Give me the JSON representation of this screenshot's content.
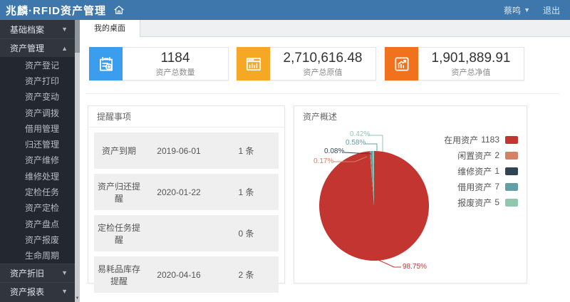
{
  "header": {
    "logo": "兆麟·RFID资产管理",
    "user": "蔡鸣",
    "logout": "退出"
  },
  "sidebar": {
    "groups": [
      {
        "label": "基础档案",
        "expanded": false
      },
      {
        "label": "资产管理",
        "expanded": true,
        "children": [
          "资产登记",
          "资产打印",
          "资产变动",
          "资产调拨",
          "借用管理",
          "归还管理",
          "资产维修",
          "维修处理",
          "定检任务",
          "资产定检",
          "资产盘点",
          "资产报废",
          "生命周期"
        ]
      },
      {
        "label": "资产折旧",
        "expanded": false
      },
      {
        "label": "资产报表",
        "expanded": false
      }
    ]
  },
  "tabs": {
    "items": [
      {
        "label": "我的桌面",
        "active": true
      }
    ]
  },
  "stats": [
    {
      "value": "1184",
      "label": "资产总数量",
      "icon": "clipboard-add-icon",
      "color": "#3b9ded"
    },
    {
      "value": "2,710,616.48",
      "label": "资产总原值",
      "icon": "browser-bars-icon",
      "color": "#f6a723"
    },
    {
      "value": "1,901,889.91",
      "label": "资产总净值",
      "icon": "trend-chart-icon",
      "color": "#f2711c"
    }
  ],
  "reminders": {
    "title": "提醒事项",
    "rows": [
      {
        "name": "资产到期",
        "date": "2019-06-01",
        "count": "1 条"
      },
      {
        "name": "资产归还提醒",
        "date": "2020-01-22",
        "count": "1 条"
      },
      {
        "name": "定检任务提醒",
        "date": "",
        "count": "0 条"
      },
      {
        "name": "易耗品库存提醒",
        "date": "2020-04-16",
        "count": "2 条"
      }
    ]
  },
  "chart_data": {
    "type": "pie",
    "title": "资产概述",
    "legend_position": "right",
    "slices": [
      {
        "label": "在用资产",
        "value": 1183,
        "percent": "98.75%",
        "color": "#c23531"
      },
      {
        "label": "闲置资产",
        "value": 2,
        "percent": "0.17%",
        "color": "#d48265"
      },
      {
        "label": "维修资产",
        "value": 1,
        "percent": "0.08%",
        "color": "#2f4554"
      },
      {
        "label": "借用资产",
        "value": 7,
        "percent": "0.58%",
        "color": "#61a0a8"
      },
      {
        "label": "报废资产",
        "value": 5,
        "percent": "0.42%",
        "color": "#91c7ae"
      }
    ]
  }
}
